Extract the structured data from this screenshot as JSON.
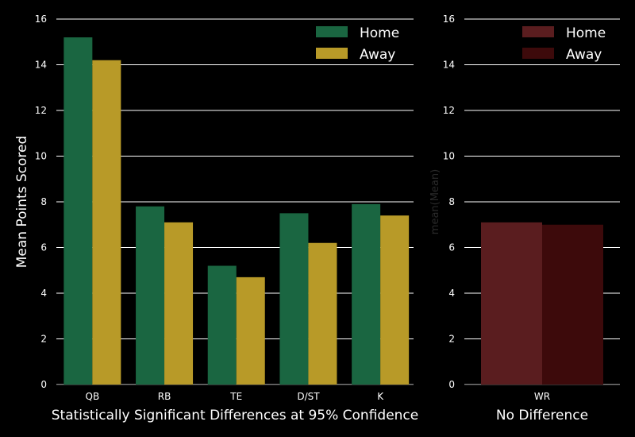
{
  "chart_data": [
    {
      "type": "bar",
      "categories": [
        "QB",
        "RB",
        "TE",
        "D/ST",
        "K"
      ],
      "series": [
        {
          "name": "Home",
          "values": [
            15.2,
            7.8,
            5.2,
            7.5,
            7.9
          ],
          "color": "#1a6641"
        },
        {
          "name": "Away",
          "values": [
            14.2,
            7.1,
            4.7,
            6.2,
            7.4
          ],
          "color": "#b89a28"
        }
      ],
      "title": "",
      "xlabel": "Statistically Significant Differences at 95% Confidence",
      "ylabel": "Mean Points Scored",
      "ylim": [
        0,
        16
      ],
      "yticks": [
        "0",
        "2",
        "4",
        "6",
        "8",
        "10",
        "12",
        "14",
        "16"
      ],
      "grid": true,
      "legend": "top-right"
    },
    {
      "type": "bar",
      "categories": [
        "WR"
      ],
      "series": [
        {
          "name": "Home",
          "values": [
            7.1
          ],
          "color": "#5a1d1f"
        },
        {
          "name": "Away",
          "values": [
            7.0
          ],
          "color": "#3d0a0b"
        }
      ],
      "title": "",
      "xlabel": "No Difference",
      "ylabel": "mean(Mean)",
      "ylim": [
        0,
        16
      ],
      "yticks": [
        "0",
        "2",
        "4",
        "6",
        "8",
        "10",
        "12",
        "14",
        "16"
      ],
      "grid": true,
      "legend": "top-right"
    }
  ]
}
